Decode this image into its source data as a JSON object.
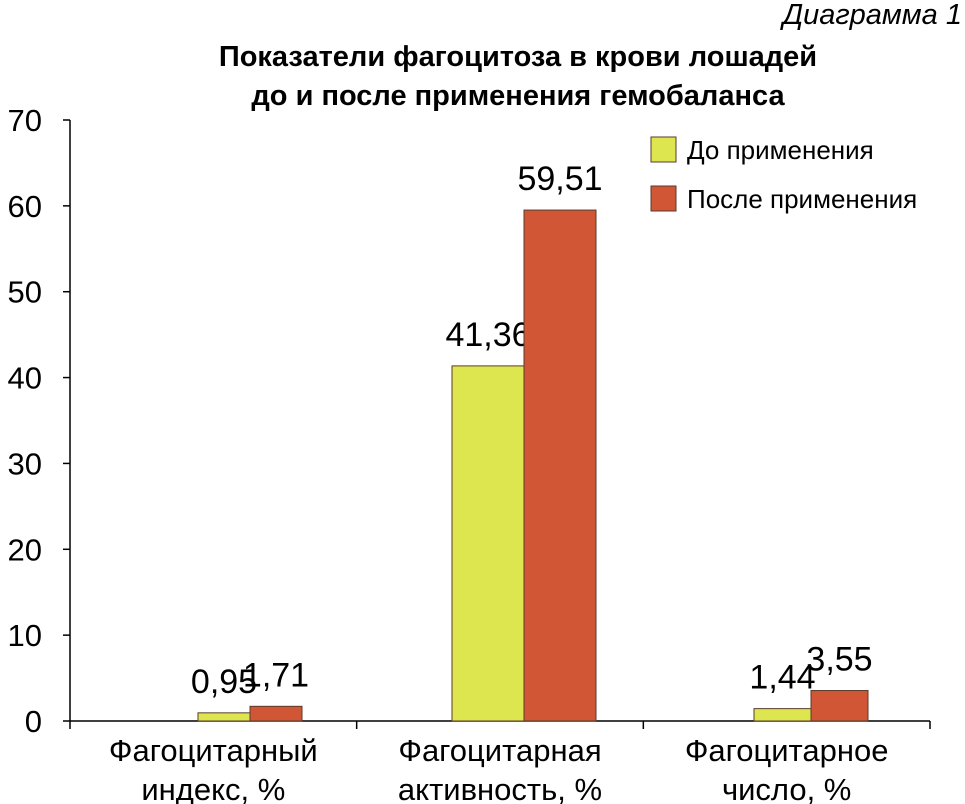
{
  "caption": "Диаграмма 1",
  "chart_data": {
    "type": "bar",
    "title_lines": [
      "Показатели фагоцитоза в крови лошадей",
      "до и после применения гемобаланса"
    ],
    "categories": [
      [
        "Фагоцитарный",
        "индекс, %"
      ],
      [
        "Фагоцитарная",
        "активность, %"
      ],
      [
        "Фагоцитарное",
        "число, %"
      ]
    ],
    "series": [
      {
        "name": "До применения",
        "values": [
          0.95,
          41.36,
          1.44
        ],
        "labels": [
          "0,95",
          "41,36",
          "1,44"
        ],
        "color": "#dde54f"
      },
      {
        "name": "После применения",
        "values": [
          1.71,
          59.51,
          3.55
        ],
        "labels": [
          "1,71",
          "59,51",
          "3,55"
        ],
        "color": "#d05636"
      }
    ],
    "ylim": [
      0,
      70
    ],
    "yticks": [
      "0",
      "10",
      "20",
      "30",
      "40",
      "50",
      "60",
      "70"
    ],
    "legend": "top-right",
    "grid": false
  }
}
